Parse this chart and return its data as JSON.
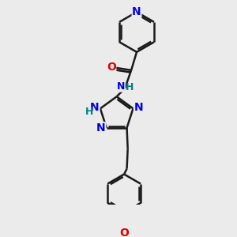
{
  "bg_color": "#ebebeb",
  "bond_color": "#1a1a1a",
  "bond_width": 1.8,
  "atom_colors": {
    "N": "#0000ee",
    "O": "#dd0000",
    "C": "#1a1a1a",
    "H": "#008080"
  },
  "font_size_N": 10,
  "font_size_O": 10,
  "font_size_H": 9,
  "font_size_NH": 9
}
